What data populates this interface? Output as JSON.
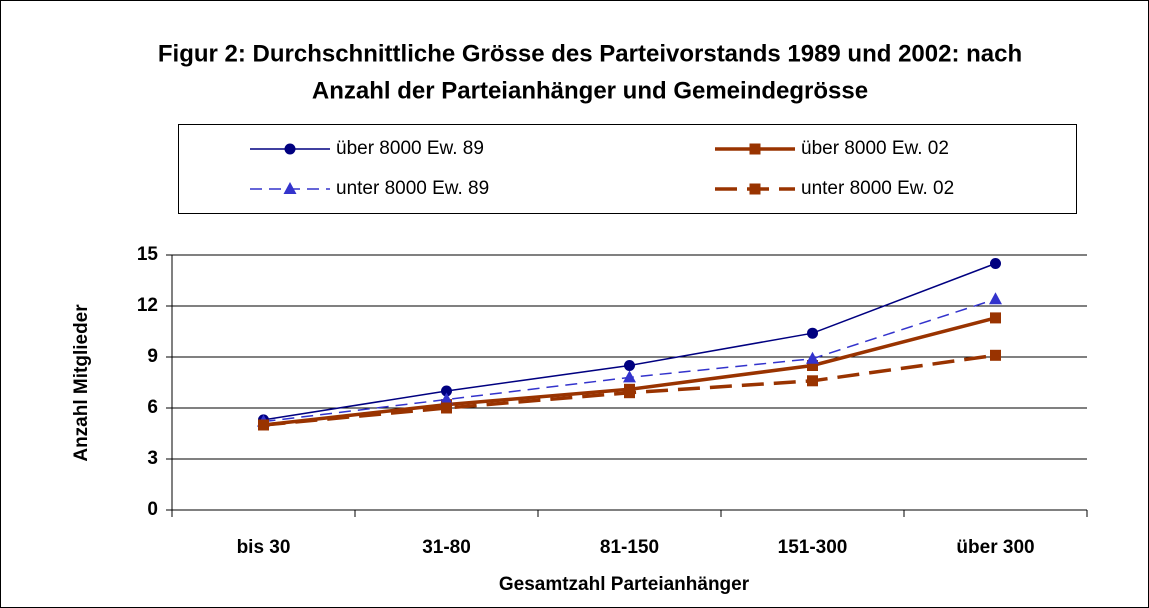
{
  "chart_data": {
    "type": "line",
    "title": [
      "Figur 2: Durchschnittliche Grösse des Parteivorstands 1989 und 2002: nach",
      "Anzahl der Parteianhänger und Gemeindegrösse"
    ],
    "x_label": "Gesamtzahl Parteianhänger",
    "y_label": "Anzahl Mitglieder",
    "categories": [
      "bis 30",
      "31-80",
      "81-150",
      "151-300",
      "über 300"
    ],
    "series": [
      {
        "name": "über 8000 Ew. 89",
        "color": "#000080",
        "line_style": "solid",
        "marker": "circle",
        "values": [
          5.3,
          7.0,
          8.5,
          10.4,
          14.5
        ]
      },
      {
        "name": "über 8000 Ew. 02",
        "color": "#993300",
        "line_style": "solid",
        "marker": "square",
        "values": [
          5.0,
          6.2,
          7.1,
          8.5,
          11.3
        ]
      },
      {
        "name": "unter 8000 Ew. 89",
        "color": "#3333cc",
        "line_style": "dashed",
        "marker": "triangle",
        "values": [
          5.2,
          6.5,
          7.8,
          8.9,
          12.4
        ]
      },
      {
        "name": "unter 8000 Ew. 02",
        "color": "#993300",
        "line_style": "dashed",
        "marker": "square",
        "values": [
          5.0,
          6.0,
          6.9,
          7.6,
          9.1
        ]
      }
    ],
    "ylim": [
      0,
      15
    ],
    "yticks": [
      0,
      3,
      6,
      9,
      12,
      15
    ],
    "grid": true
  }
}
